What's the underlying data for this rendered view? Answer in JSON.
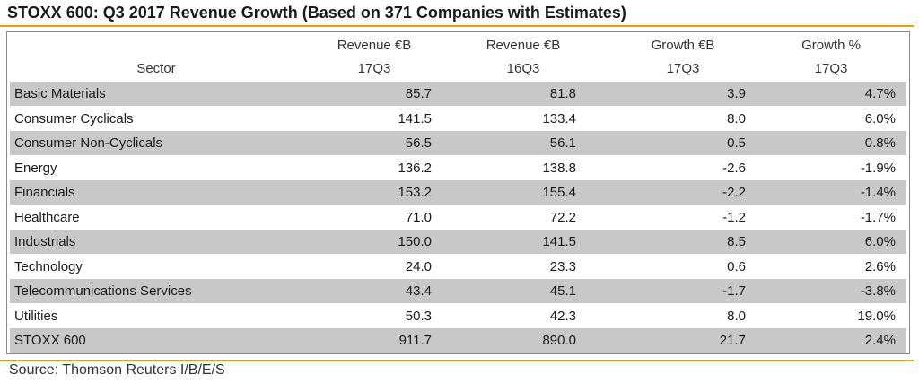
{
  "title": "STOXX 600: Q3 2017 Revenue Growth (Based on 371 Companies with Estimates)",
  "source": "Source: Thomson Reuters I/B/E/S",
  "colors": {
    "accent_rule": "#f0a000",
    "row_shade": "#c8c8c8"
  },
  "chart_data": {
    "type": "table",
    "columns": [
      {
        "line1": "",
        "line2": "Sector"
      },
      {
        "line1": "Revenue €B",
        "line2": "17Q3"
      },
      {
        "line1": "Revenue €B",
        "line2": "16Q3"
      },
      {
        "line1": "Growth €B",
        "line2": "17Q3"
      },
      {
        "line1": "Growth %",
        "line2": "17Q3"
      }
    ],
    "rows": [
      {
        "sector": "Basic Materials",
        "rev17": "85.7",
        "rev16": "81.8",
        "growth_eur": "3.9",
        "growth_pct": "4.7%"
      },
      {
        "sector": "Consumer Cyclicals",
        "rev17": "141.5",
        "rev16": "133.4",
        "growth_eur": "8.0",
        "growth_pct": "6.0%"
      },
      {
        "sector": "Consumer Non-Cyclicals",
        "rev17": "56.5",
        "rev16": "56.1",
        "growth_eur": "0.5",
        "growth_pct": "0.8%"
      },
      {
        "sector": "Energy",
        "rev17": "136.2",
        "rev16": "138.8",
        "growth_eur": "-2.6",
        "growth_pct": "-1.9%"
      },
      {
        "sector": "Financials",
        "rev17": "153.2",
        "rev16": "155.4",
        "growth_eur": "-2.2",
        "growth_pct": "-1.4%"
      },
      {
        "sector": "Healthcare",
        "rev17": "71.0",
        "rev16": "72.2",
        "growth_eur": "-1.2",
        "growth_pct": "-1.7%"
      },
      {
        "sector": "Industrials",
        "rev17": "150.0",
        "rev16": "141.5",
        "growth_eur": "8.5",
        "growth_pct": "6.0%"
      },
      {
        "sector": "Technology",
        "rev17": "24.0",
        "rev16": "23.3",
        "growth_eur": "0.6",
        "growth_pct": "2.6%"
      },
      {
        "sector": "Telecommunications Services",
        "rev17": "43.4",
        "rev16": "45.1",
        "growth_eur": "-1.7",
        "growth_pct": "-3.8%"
      },
      {
        "sector": "Utilities",
        "rev17": "50.3",
        "rev16": "42.3",
        "growth_eur": "8.0",
        "growth_pct": "19.0%"
      },
      {
        "sector": "STOXX 600",
        "rev17": "911.7",
        "rev16": "890.0",
        "growth_eur": "21.7",
        "growth_pct": "2.4%"
      }
    ]
  }
}
